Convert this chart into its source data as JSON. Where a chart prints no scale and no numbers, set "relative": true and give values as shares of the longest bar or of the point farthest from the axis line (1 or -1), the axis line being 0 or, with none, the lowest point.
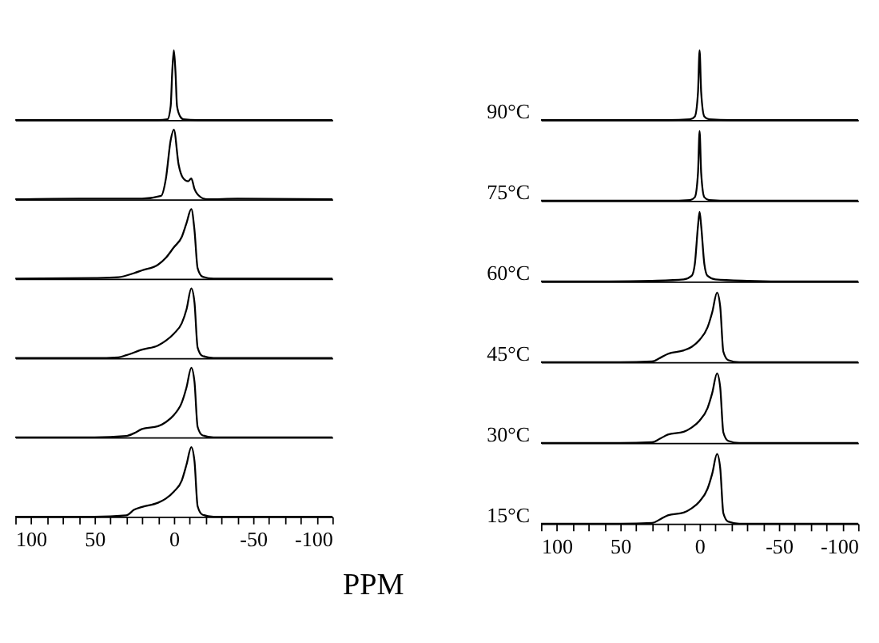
{
  "chart_data": [
    {
      "type": "line",
      "relative": true,
      "tick_labels": false,
      "xlim": [
        100,
        -100
      ],
      "series": [
        {
          "color": "#000000",
          "x": [
            100,
            60,
            20,
            10,
            4,
            2,
            1,
            0,
            -1,
            -2,
            -4,
            -6,
            -15,
            -60,
            -100
          ],
          "values": [
            0,
            0,
            0,
            0,
            0.01,
            0.2,
            0.7,
            1,
            0.7,
            0.2,
            0.05,
            0.01,
            0,
            0,
            0
          ]
        }
      ]
    },
    {
      "type": "line",
      "relative": true,
      "tick_labels": false,
      "xlim": [
        100,
        -100
      ],
      "series": [
        {
          "color": "#000000",
          "x": [
            100,
            60,
            20,
            8,
            5,
            2,
            0,
            -3,
            -6,
            -9,
            -11,
            -13,
            -17,
            -21,
            -40,
            -100
          ],
          "values": [
            0,
            0.01,
            0.01,
            0.05,
            0.3,
            0.85,
            1,
            0.5,
            0.3,
            0.26,
            0.3,
            0.15,
            0.03,
            0,
            0.01,
            0
          ]
        }
      ]
    },
    {
      "type": "line",
      "relative": true,
      "tick_labels": false,
      "xlim": [
        100,
        -100
      ],
      "series": [
        {
          "color": "#000000",
          "x": [
            100,
            50,
            35,
            25,
            20,
            10,
            5,
            0,
            -5,
            -8,
            -11,
            -13,
            -15,
            -18,
            -25,
            -100
          ],
          "values": [
            0,
            0.01,
            0.02,
            0.08,
            0.12,
            0.2,
            0.3,
            0.45,
            0.6,
            0.8,
            1,
            0.7,
            0.15,
            0.03,
            0,
            0
          ]
        }
      ]
    },
    {
      "type": "line",
      "relative": true,
      "tick_labels": false,
      "xlim": [
        100,
        -100
      ],
      "series": [
        {
          "color": "#000000",
          "x": [
            100,
            50,
            35,
            30,
            20,
            10,
            5,
            0,
            -5,
            -8,
            -11,
            -13,
            -15,
            -18,
            -25,
            -100
          ],
          "values": [
            0,
            0,
            0.01,
            0.04,
            0.12,
            0.18,
            0.25,
            0.35,
            0.5,
            0.7,
            1,
            0.8,
            0.15,
            0.03,
            0,
            0
          ]
        }
      ]
    },
    {
      "type": "line",
      "relative": true,
      "tick_labels": false,
      "xlim": [
        100,
        -100
      ],
      "series": [
        {
          "color": "#000000",
          "x": [
            100,
            50,
            30,
            25,
            20,
            10,
            5,
            0,
            -5,
            -8,
            -11,
            -13,
            -15,
            -18,
            -25,
            -100
          ],
          "values": [
            0,
            0,
            0.02,
            0.06,
            0.12,
            0.16,
            0.22,
            0.32,
            0.5,
            0.72,
            1,
            0.8,
            0.15,
            0.03,
            0,
            0
          ]
        }
      ]
    },
    {
      "type": "line",
      "relative": true,
      "tick_labels": "x",
      "xlim": [
        100,
        -100
      ],
      "xticks": [
        100,
        {
          "value": 90,
          "label": null
        },
        {
          "value": 80,
          "label": null
        },
        {
          "value": 70,
          "label": null
        },
        {
          "value": 60,
          "label": null
        },
        50,
        {
          "value": 40,
          "label": null
        },
        {
          "value": 30,
          "label": null
        },
        {
          "value": 20,
          "label": null
        },
        {
          "value": 10,
          "label": null
        },
        0,
        {
          "value": -10,
          "label": null
        },
        {
          "value": -20,
          "label": null
        },
        {
          "value": -30,
          "label": null
        },
        {
          "value": -40,
          "label": null
        },
        -50,
        {
          "value": -60,
          "label": null
        },
        {
          "value": -70,
          "label": null
        },
        {
          "value": -80,
          "label": null
        },
        {
          "value": -90,
          "label": null
        },
        -100
      ],
      "xlabel": "PPM",
      "series": [
        {
          "color": "#000000",
          "x": [
            100,
            50,
            30,
            25,
            20,
            10,
            5,
            0,
            -5,
            -8,
            -11,
            -13,
            -15,
            -18,
            -25,
            -100
          ],
          "values": [
            0,
            0,
            0.02,
            0.1,
            0.14,
            0.2,
            0.26,
            0.36,
            0.52,
            0.75,
            1,
            0.8,
            0.15,
            0.03,
            0,
            0
          ]
        }
      ]
    },
    {
      "type": "line",
      "relative": true,
      "tick_labels": false,
      "xlim": [
        100,
        -100
      ],
      "annotations": [
        "90°C"
      ],
      "series": [
        {
          "color": "#000000",
          "x": [
            100,
            60,
            20,
            6,
            3,
            1,
            0,
            -1,
            -3,
            -6,
            -20,
            -60,
            -100
          ],
          "values": [
            0,
            0,
            0,
            0.01,
            0.05,
            0.4,
            1,
            0.4,
            0.05,
            0.01,
            0,
            0,
            0
          ]
        }
      ]
    },
    {
      "type": "line",
      "relative": true,
      "tick_labels": false,
      "xlim": [
        100,
        -100
      ],
      "annotations": [
        "75°C"
      ],
      "series": [
        {
          "color": "#000000",
          "x": [
            100,
            60,
            20,
            6,
            3,
            1,
            0,
            -1,
            -3,
            -6,
            -20,
            -60,
            -100
          ],
          "values": [
            0,
            0,
            0,
            0.01,
            0.05,
            0.4,
            1,
            0.4,
            0.05,
            0.01,
            0,
            0,
            0
          ]
        }
      ]
    },
    {
      "type": "line",
      "relative": true,
      "tick_labels": false,
      "xlim": [
        100,
        -100
      ],
      "annotations": [
        "60°C"
      ],
      "series": [
        {
          "color": "#000000",
          "x": [
            100,
            60,
            30,
            10,
            5,
            3,
            1,
            0,
            -1,
            -3,
            -5,
            -10,
            -30,
            -60,
            -100
          ],
          "values": [
            0,
            0,
            0.01,
            0.03,
            0.08,
            0.25,
            0.8,
            1,
            0.8,
            0.25,
            0.08,
            0.03,
            0.01,
            0,
            0
          ]
        }
      ]
    },
    {
      "type": "line",
      "relative": true,
      "tick_labels": false,
      "xlim": [
        100,
        -100
      ],
      "annotations": [
        "45°C"
      ],
      "series": [
        {
          "color": "#000000",
          "x": [
            100,
            50,
            30,
            25,
            20,
            10,
            5,
            0,
            -5,
            -8,
            -11,
            -13,
            -15,
            -18,
            -25,
            -100
          ],
          "values": [
            0,
            0,
            0.01,
            0.06,
            0.12,
            0.17,
            0.22,
            0.32,
            0.5,
            0.72,
            1,
            0.8,
            0.15,
            0.03,
            0,
            0
          ]
        }
      ]
    },
    {
      "type": "line",
      "relative": true,
      "tick_labels": false,
      "xlim": [
        100,
        -100
      ],
      "annotations": [
        "30°C"
      ],
      "series": [
        {
          "color": "#000000",
          "x": [
            100,
            50,
            30,
            25,
            20,
            10,
            5,
            0,
            -5,
            -8,
            -11,
            -13,
            -15,
            -18,
            -25,
            -100
          ],
          "values": [
            0,
            0,
            0.01,
            0.06,
            0.12,
            0.16,
            0.22,
            0.32,
            0.5,
            0.72,
            1,
            0.8,
            0.15,
            0.03,
            0,
            0
          ]
        }
      ]
    },
    {
      "type": "line",
      "relative": true,
      "tick_labels": "x",
      "xlim": [
        100,
        -100
      ],
      "xticks": [
        100,
        {
          "value": 90,
          "label": null
        },
        {
          "value": 80,
          "label": null
        },
        {
          "value": 70,
          "label": null
        },
        {
          "value": 60,
          "label": null
        },
        50,
        {
          "value": 40,
          "label": null
        },
        {
          "value": 30,
          "label": null
        },
        {
          "value": 20,
          "label": null
        },
        {
          "value": 10,
          "label": null
        },
        0,
        {
          "value": -10,
          "label": null
        },
        {
          "value": -20,
          "label": null
        },
        {
          "value": -30,
          "label": null
        },
        {
          "value": -40,
          "label": null
        },
        -50,
        {
          "value": -60,
          "label": null
        },
        {
          "value": -70,
          "label": null
        },
        {
          "value": -80,
          "label": null
        },
        {
          "value": -90,
          "label": null
        },
        -100
      ],
      "annotations": [
        "15°C"
      ],
      "series": [
        {
          "color": "#000000",
          "x": [
            100,
            50,
            30,
            25,
            20,
            10,
            5,
            0,
            -5,
            -8,
            -11,
            -13,
            -15,
            -18,
            -25,
            -100
          ],
          "values": [
            0,
            0,
            0.01,
            0.06,
            0.12,
            0.16,
            0.22,
            0.32,
            0.5,
            0.72,
            1,
            0.8,
            0.15,
            0.03,
            0,
            0
          ]
        }
      ]
    }
  ]
}
